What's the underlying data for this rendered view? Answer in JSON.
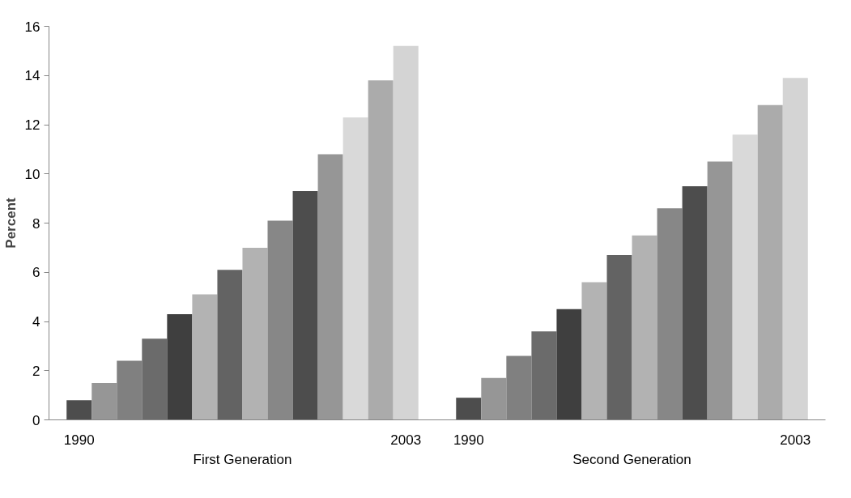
{
  "chart_data": {
    "type": "bar",
    "ylabel": "Percent",
    "categories": [
      "1990",
      null,
      null,
      null,
      null,
      null,
      null,
      null,
      null,
      null,
      null,
      null,
      null,
      "2003",
      "1990",
      null,
      null,
      null,
      null,
      null,
      null,
      null,
      null,
      null,
      null,
      null,
      null,
      "2003"
    ],
    "values": [
      0.8,
      1.5,
      2.4,
      3.3,
      4.3,
      5.1,
      6.1,
      7.0,
      8.1,
      9.3,
      10.8,
      12.3,
      13.8,
      15.2,
      0.9,
      1.7,
      2.6,
      3.6,
      4.5,
      5.6,
      6.7,
      7.5,
      8.6,
      9.5,
      10.5,
      11.6,
      12.8,
      13.9
    ],
    "colors": [
      "#4d4d4d",
      "#969696",
      "#808080",
      "#6b6b6b",
      "#3f3f3f",
      "#b3b3b3",
      "#636363",
      "#b2b2b2",
      "#878787",
      "#4d4d4d",
      "#969696",
      "#d9d9d9",
      "#ababab",
      "#d4d4d4",
      "#4d4d4d",
      "#969696",
      "#808080",
      "#6b6b6b",
      "#3f3f3f",
      "#b3b3b3",
      "#636363",
      "#b2b2b2",
      "#878787",
      "#4d4d4d",
      "#969696",
      "#d9d9d9",
      "#ababab",
      "#d4d4d4"
    ],
    "annotations": [
      "First Generation",
      "Second Generation"
    ],
    "ylim": [
      0,
      16
    ],
    "yticks": [
      0,
      2,
      4,
      6,
      8,
      10,
      12,
      14,
      16
    ],
    "grid": false
  }
}
